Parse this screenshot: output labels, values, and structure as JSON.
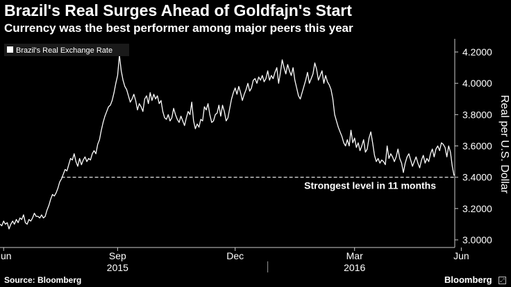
{
  "title": "Brazil's Real Surges Ahead of Goldfajn's Start",
  "subtitle": "Currency was the best performer among major peers this year",
  "source": "Source: Bloomberg",
  "brand": "Bloomberg",
  "chart_data": {
    "type": "line",
    "title": "Brazil's Real Surges Ahead of Goldfajn's Start",
    "subtitle": "Currency was the best performer among major peers this year",
    "xlabel": "",
    "ylabel": "Real per U.S. Dollar",
    "ylim": [
      3.0,
      4.3
    ],
    "yticks": [
      "3.0000",
      "3.2000",
      "3.4000",
      "3.6000",
      "3.8000",
      "4.0000",
      "4.2000"
    ],
    "ytick_values": [
      3.0,
      3.2,
      3.4,
      3.6,
      3.8,
      4.0,
      4.2
    ],
    "xticks": [
      "Jun",
      "Sep",
      "Dec",
      "Mar",
      "Jun"
    ],
    "xtick_index": [
      2,
      65,
      130,
      196,
      255
    ],
    "years": [
      {
        "label": "2015",
        "index": 65
      },
      {
        "label": "2016",
        "index": 196
      }
    ],
    "legend": "Brazil's Real Exchange Rate",
    "legend_position": "top-left",
    "reference_line": {
      "value": 3.4,
      "start_index": 34,
      "label": "Strongest level in 11 months"
    },
    "series": [
      {
        "name": "Brazil's Real Exchange Rate",
        "color": "#ffffff",
        "values": [
          3.1,
          3.09,
          3.12,
          3.1,
          3.11,
          3.07,
          3.1,
          3.12,
          3.1,
          3.13,
          3.11,
          3.14,
          3.13,
          3.16,
          3.11,
          3.1,
          3.13,
          3.12,
          3.14,
          3.17,
          3.15,
          3.15,
          3.14,
          3.16,
          3.14,
          3.15,
          3.19,
          3.22,
          3.26,
          3.29,
          3.28,
          3.3,
          3.33,
          3.37,
          3.39,
          3.42,
          3.45,
          3.44,
          3.48,
          3.52,
          3.51,
          3.55,
          3.5,
          3.47,
          3.52,
          3.48,
          3.51,
          3.53,
          3.5,
          3.52,
          3.51,
          3.55,
          3.57,
          3.55,
          3.61,
          3.64,
          3.7,
          3.75,
          3.79,
          3.82,
          3.85,
          3.86,
          3.89,
          3.94,
          4.0,
          4.05,
          4.18,
          4.08,
          4.02,
          3.98,
          3.96,
          3.92,
          3.88,
          3.9,
          3.93,
          3.89,
          3.83,
          3.87,
          3.85,
          3.82,
          3.9,
          3.92,
          3.87,
          3.94,
          3.89,
          3.93,
          3.9,
          3.92,
          3.87,
          3.89,
          3.82,
          3.78,
          3.77,
          3.8,
          3.76,
          3.78,
          3.84,
          3.8,
          3.77,
          3.75,
          3.79,
          3.76,
          3.73,
          3.78,
          3.82,
          3.8,
          3.88,
          3.76,
          3.71,
          3.74,
          3.72,
          3.77,
          3.76,
          3.85,
          3.83,
          3.87,
          3.8,
          3.75,
          3.76,
          3.8,
          3.81,
          3.86,
          3.79,
          3.86,
          3.82,
          3.76,
          3.78,
          3.84,
          3.9,
          3.94,
          3.97,
          3.93,
          3.98,
          3.94,
          3.89,
          3.93,
          3.96,
          4.0,
          3.95,
          3.97,
          4.02,
          4.03,
          4.0,
          4.04,
          4.02,
          4.05,
          4.01,
          4.03,
          4.08,
          4.02,
          4.05,
          4.03,
          4.07,
          4.1,
          4.0,
          4.07,
          4.15,
          4.1,
          4.06,
          4.12,
          4.08,
          4.05,
          4.1,
          4.02,
          3.97,
          3.92,
          3.9,
          3.94,
          3.98,
          4.02,
          4.07,
          4.0,
          4.03,
          4.06,
          4.13,
          4.09,
          4.02,
          4.05,
          4.08,
          4.0,
          4.05,
          4.01,
          3.99,
          3.96,
          3.9,
          3.8,
          3.76,
          3.72,
          3.69,
          3.66,
          3.62,
          3.6,
          3.64,
          3.6,
          3.7,
          3.62,
          3.65,
          3.59,
          3.62,
          3.57,
          3.6,
          3.64,
          3.56,
          3.58,
          3.65,
          3.69,
          3.62,
          3.54,
          3.5,
          3.52,
          3.49,
          3.51,
          3.5,
          3.48,
          3.6,
          3.52,
          3.55,
          3.53,
          3.5,
          3.53,
          3.58,
          3.52,
          3.49,
          3.43,
          3.49,
          3.53,
          3.55,
          3.51,
          3.47,
          3.5,
          3.53,
          3.49,
          3.46,
          3.51,
          3.54,
          3.49,
          3.52,
          3.5,
          3.55,
          3.58,
          3.53,
          3.58,
          3.6,
          3.57,
          3.62,
          3.61,
          3.59,
          3.53,
          3.6,
          3.56,
          3.47,
          3.41
        ]
      }
    ]
  }
}
